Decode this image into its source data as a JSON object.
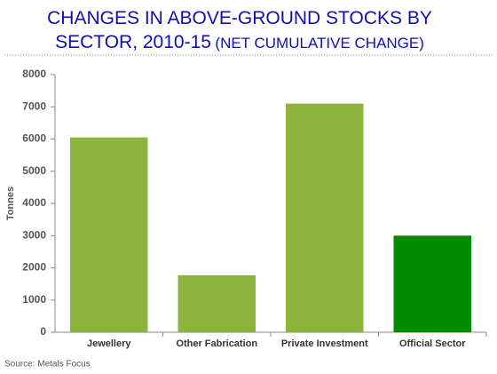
{
  "chart_data": {
    "type": "bar",
    "title": "CHANGES IN ABOVE-GROUND STOCKS BY SECTOR, 2010-15",
    "subtitle": "(NET CUMULATIVE CHANGE)",
    "y_label": "Tonnes",
    "source": "Source: Metals Focus",
    "categories": [
      "Jewellery",
      "Other Fabrication",
      "Private Investment",
      "Official Sector"
    ],
    "values": [
      6050,
      1770,
      7100,
      3000
    ],
    "colors": [
      "#8db33f",
      "#8db33f",
      "#8db33f",
      "#008a00"
    ],
    "ylim": [
      0,
      8000
    ],
    "yticks": [
      0,
      1000,
      2000,
      3000,
      4000,
      5000,
      6000,
      7000,
      8000
    ],
    "grid": false
  }
}
